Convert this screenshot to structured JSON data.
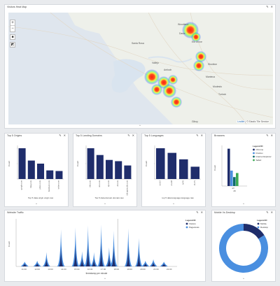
{
  "map_panel": {
    "title": "Visitors Heat Map",
    "zoom_in": "+",
    "zoom_out": "−",
    "attribution_leaflet": "Leaflet",
    "attribution_rest": "| © Elastic Tile Service",
    "collapse": "^",
    "cities": [
      "Woodland",
      "Davis",
      "Elk Grove",
      "Santa Rosa",
      "Vallejo",
      "Antioch",
      "Stockton",
      "Manteca",
      "Modesto",
      "Turlock",
      "Gilroy"
    ]
  },
  "panels": [
    {
      "title": "Top 5 Origins",
      "chart_data": {
        "type": "bar",
        "categories": [
          "google.com",
          "bing.com",
          "yahoo.com",
          "facebook.com",
          "twitter.com"
        ],
        "values": [
          100,
          60,
          50,
          28,
          26
        ],
        "ylabel": "Count",
        "xlabel": "Top 5 data.origin.origin.raw"
      }
    },
    {
      "title": "Top 5 Landing Domains",
      "chart_data": {
        "type": "bar",
        "categories": [
          "elie.com",
          "site.com",
          "ejn.com",
          "dd.com",
          "ddi.spytec.blo.com"
        ],
        "values": [
          100,
          78,
          62,
          58,
          44
        ],
        "ylabel": "Count",
        "xlabel": "Top 5 data.domain.domain.raw"
      }
    },
    {
      "title": "Top 5 Languages",
      "chart_data": {
        "type": "bar",
        "categories": [
          "en-US",
          "en-GB",
          "fr-FR",
          "zh-CN"
        ],
        "values": [
          100,
          85,
          64,
          40
        ],
        "ylabel": "Count",
        "xlabel": "top 5 data.language.language.raw"
      }
    },
    {
      "title": "Browsers",
      "legend_title": "Legend ID",
      "chart_data": {
        "type": "bar",
        "categories": [
          "all"
        ],
        "series": [
          {
            "name": "Chrome",
            "values": [
              92
            ],
            "color": "#1f2d6b"
          },
          {
            "name": "FireFox",
            "values": [
              38
            ],
            "color": "#4a8fe0"
          },
          {
            "name": "Internet Explorer",
            "values": [
              22
            ],
            "color": "#0e6b6b"
          },
          {
            "name": "Safari",
            "values": [
              32
            ],
            "color": "#3dab55"
          }
        ],
        "ylabel": "Count",
        "xlabel": "All"
      }
    }
  ],
  "traffic": {
    "title": "Website Traffic",
    "legend_title": "Legend ID",
    "chart_data": {
      "type": "area",
      "xlabel": "timestamp per minute",
      "ylabel": "Count",
      "ticks": [
        "11:00",
        "12:00",
        "13:00",
        "14:00",
        "15:00",
        "16:00",
        "17:00",
        "18:00",
        "19:00",
        "20:00",
        "21:00",
        "22:00"
      ],
      "series": [
        {
          "name": "Visitors",
          "color": "#1f2d6b"
        },
        {
          "name": "Pageviews",
          "color": "#4a8fe0"
        }
      ],
      "peaks": [
        {
          "t": 11.05,
          "v": 10
        },
        {
          "t": 12.0,
          "v": 12
        },
        {
          "t": 12.7,
          "v": 30
        },
        {
          "t": 13.8,
          "v": 78
        },
        {
          "t": 14.9,
          "v": 82
        },
        {
          "t": 15.4,
          "v": 32
        },
        {
          "t": 15.85,
          "v": 86
        },
        {
          "t": 16.3,
          "v": 30
        },
        {
          "t": 16.85,
          "v": 88
        },
        {
          "t": 17.45,
          "v": 40
        },
        {
          "t": 17.8,
          "v": 75
        },
        {
          "t": 18.9,
          "v": 80
        },
        {
          "t": 19.7,
          "v": 60
        },
        {
          "t": 20.2,
          "v": 12
        },
        {
          "t": 20.8,
          "v": 15
        },
        {
          "t": 21.6,
          "v": 10
        }
      ],
      "marker_t": 18.1
    }
  },
  "desktop": {
    "title": "Mobile Vs Desktop",
    "legend_title": "Legend ID",
    "chart_data": {
      "type": "pie",
      "slices": [
        {
          "name": "Mobile",
          "value": 16,
          "color": "#1f2d6b"
        },
        {
          "name": "Desktop",
          "value": 84,
          "color": "#4a8fe0"
        }
      ]
    }
  },
  "icons": {
    "pin": "pin-icon",
    "close": "close-icon",
    "collapse": "chevron-up-icon"
  }
}
